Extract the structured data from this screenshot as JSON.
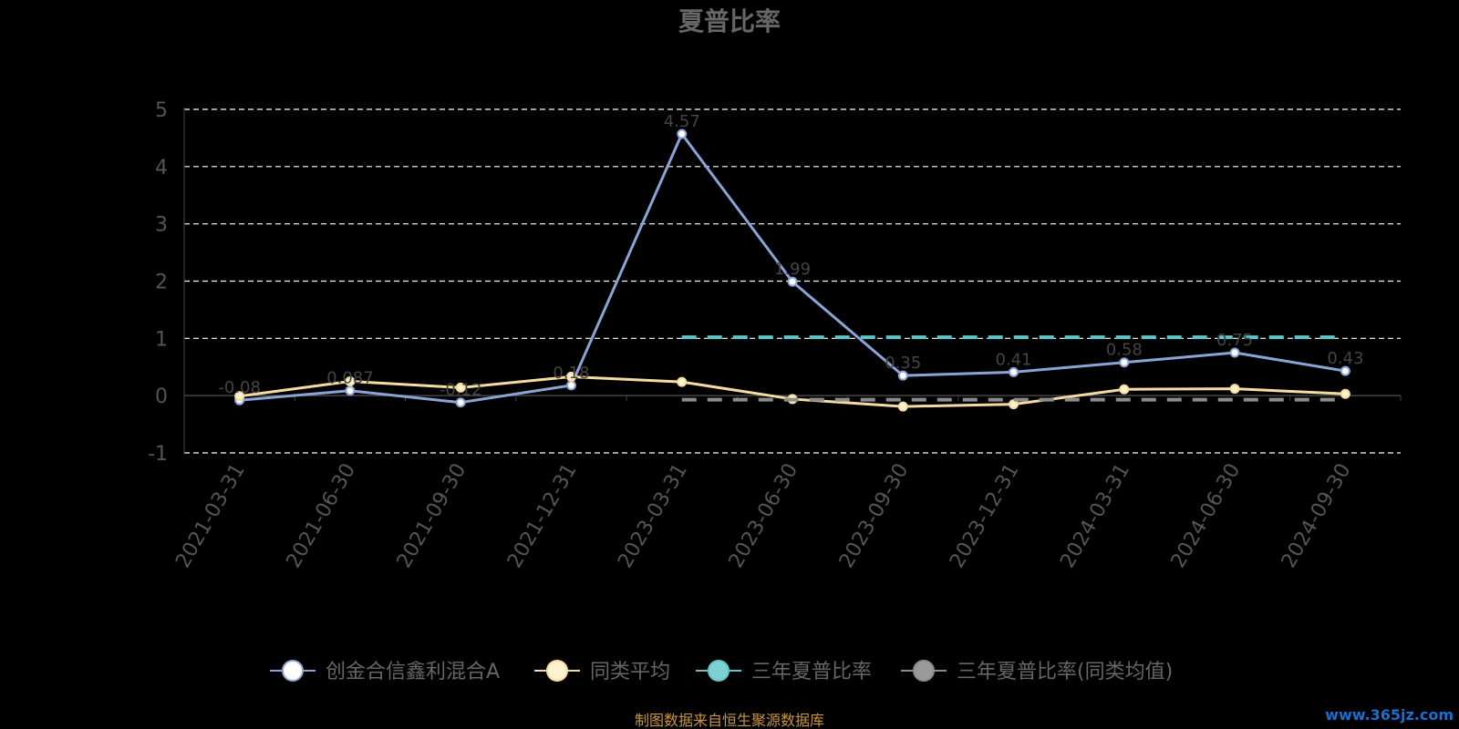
{
  "chart_data": {
    "type": "line",
    "title": "夏普比率",
    "categories": [
      "2021-03-31",
      "2021-06-30",
      "2021-09-30",
      "2021-12-31",
      "2023-03-31",
      "2023-06-30",
      "2023-09-30",
      "2023-12-31",
      "2024-03-31",
      "2024-06-30",
      "2024-09-30"
    ],
    "ylim": [
      -1,
      5
    ],
    "yticks": [
      5,
      4,
      3,
      2,
      1,
      0,
      -1
    ],
    "grid": true,
    "legend_position": "bottom",
    "series": [
      {
        "name": "创金合信鑫利混合A",
        "color": "#8aa4d6",
        "style": "solid",
        "values": [
          -0.08,
          0.087,
          -0.12,
          0.18,
          4.57,
          1.99,
          0.35,
          0.41,
          0.58,
          0.75,
          0.43
        ],
        "labels": [
          "-0.08",
          "0.087",
          "-0.12",
          "0.18",
          "4.57",
          "1.99",
          "0.35",
          "0.41",
          "0.58",
          "0.75",
          "0.43"
        ]
      },
      {
        "name": "同类平均",
        "color": "#f5dca0",
        "style": "solid",
        "values": [
          -0.01,
          0.25,
          0.14,
          0.33,
          0.24,
          -0.06,
          -0.19,
          -0.15,
          0.11,
          0.12,
          0.03
        ],
        "labels": []
      },
      {
        "name": "三年夏普比率",
        "color": "#5fc7c8",
        "style": "dashed",
        "values": [
          null,
          null,
          null,
          null,
          1.02,
          1.02,
          1.02,
          1.02,
          1.02,
          1.02,
          1.02
        ],
        "labels": []
      },
      {
        "name": "三年夏普比率(同类均值)",
        "color": "#8c8c8c",
        "style": "dashed",
        "values": [
          null,
          null,
          null,
          null,
          -0.07,
          -0.07,
          -0.07,
          -0.07,
          -0.07,
          -0.07,
          -0.07
        ],
        "labels": []
      }
    ],
    "legend_marker_colors": [
      "#ffffff",
      "#fff2d0",
      "#7fd0d4",
      "#9a9a9a"
    ],
    "footer": "制图数据来自恒生聚源数据库",
    "watermark": "www.365jz.com"
  }
}
